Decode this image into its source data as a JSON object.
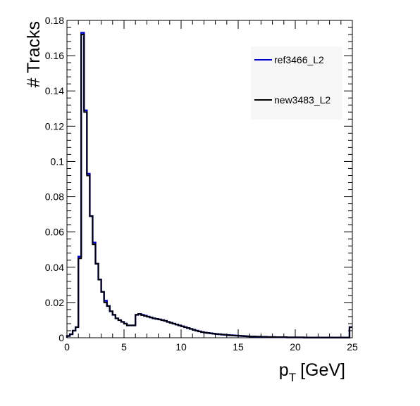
{
  "chart_data": {
    "type": "line",
    "xlabel": "p",
    "xlabel_sub": "T",
    "xlabel_unit": "[GeV]",
    "ylabel": "# Tracks",
    "xlim": [
      0,
      25
    ],
    "ylim": [
      0,
      0.18
    ],
    "x_ticks": [
      0,
      5,
      10,
      15,
      20,
      25
    ],
    "y_ticks": [
      0,
      0.02,
      0.04,
      0.06,
      0.08,
      0.1,
      0.12,
      0.14,
      0.16,
      0.18
    ],
    "y_tick_labels": [
      "0",
      "0.02",
      "0.04",
      "0.06",
      "0.08",
      "0.1",
      "0.12",
      "0.14",
      "0.16",
      "0.18"
    ],
    "grid": false,
    "legend_position": "top-right",
    "bin_edges_start": 0,
    "bin_width": 0.25,
    "series": [
      {
        "name": "ref3466_L2",
        "color": "#0000cc",
        "values": [
          0.001,
          0.002,
          0.004,
          0.006,
          0.046,
          0.173,
          0.129,
          0.093,
          0.069,
          0.054,
          0.042,
          0.033,
          0.026,
          0.021,
          0.018,
          0.015,
          0.013,
          0.011,
          0.01,
          0.009,
          0.008,
          0.007,
          0.007,
          0.007,
          0.013,
          0.0135,
          0.013,
          0.0125,
          0.012,
          0.0115,
          0.011,
          0.0107,
          0.0104,
          0.01,
          0.0096,
          0.009,
          0.0085,
          0.008,
          0.0075,
          0.007,
          0.0065,
          0.006,
          0.0055,
          0.005,
          0.0045,
          0.004,
          0.0036,
          0.0032,
          0.0029,
          0.0027,
          0.0025,
          0.0023,
          0.0021,
          0.002,
          0.0018,
          0.0017,
          0.0015,
          0.0014,
          0.0013,
          0.0012,
          0.0011,
          0.001,
          0.0009,
          0.0008,
          0.0007,
          0.0007,
          0.0006,
          0.0006,
          0.0005,
          0.0005,
          0.0004,
          0.0004,
          0.0004,
          0.0003,
          0.0003,
          0.0003,
          0.0003,
          0.0002,
          0.0002,
          0.0002,
          0.0002,
          0.0002,
          0.0002,
          0.0001,
          0.0001,
          0.0001,
          0.0001,
          0.0001,
          0.0001,
          0.0001,
          0.0001,
          0.0001,
          0.0001,
          0.0001,
          0.0001,
          0.0001,
          0.0001,
          0.0001,
          0.0001,
          0.006
        ]
      },
      {
        "name": "new3483_L2",
        "color": "#000000",
        "values": [
          0.001,
          0.002,
          0.004,
          0.006,
          0.045,
          0.172,
          0.128,
          0.092,
          0.069,
          0.053,
          0.042,
          0.033,
          0.026,
          0.02,
          0.018,
          0.015,
          0.013,
          0.011,
          0.01,
          0.009,
          0.008,
          0.007,
          0.007,
          0.007,
          0.013,
          0.0135,
          0.0128,
          0.0123,
          0.0119,
          0.0115,
          0.011,
          0.0107,
          0.0104,
          0.01,
          0.0096,
          0.009,
          0.0085,
          0.008,
          0.0075,
          0.007,
          0.0065,
          0.006,
          0.0055,
          0.005,
          0.0045,
          0.004,
          0.0036,
          0.0032,
          0.0029,
          0.0027,
          0.0025,
          0.0023,
          0.0021,
          0.002,
          0.0018,
          0.0017,
          0.0015,
          0.0014,
          0.0013,
          0.0012,
          0.0011,
          0.001,
          0.0009,
          0.0008,
          0.0007,
          0.0007,
          0.0006,
          0.0006,
          0.0005,
          0.0005,
          0.0004,
          0.0004,
          0.0004,
          0.0003,
          0.0003,
          0.0003,
          0.0003,
          0.0002,
          0.0002,
          0.0002,
          0.0002,
          0.0002,
          0.0002,
          0.0001,
          0.0001,
          0.0001,
          0.0001,
          0.0001,
          0.0001,
          0.0001,
          0.0001,
          0.0001,
          0.0001,
          0.0001,
          0.0001,
          0.0001,
          0.0001,
          0.0001,
          0.0001,
          0.006
        ]
      }
    ]
  }
}
